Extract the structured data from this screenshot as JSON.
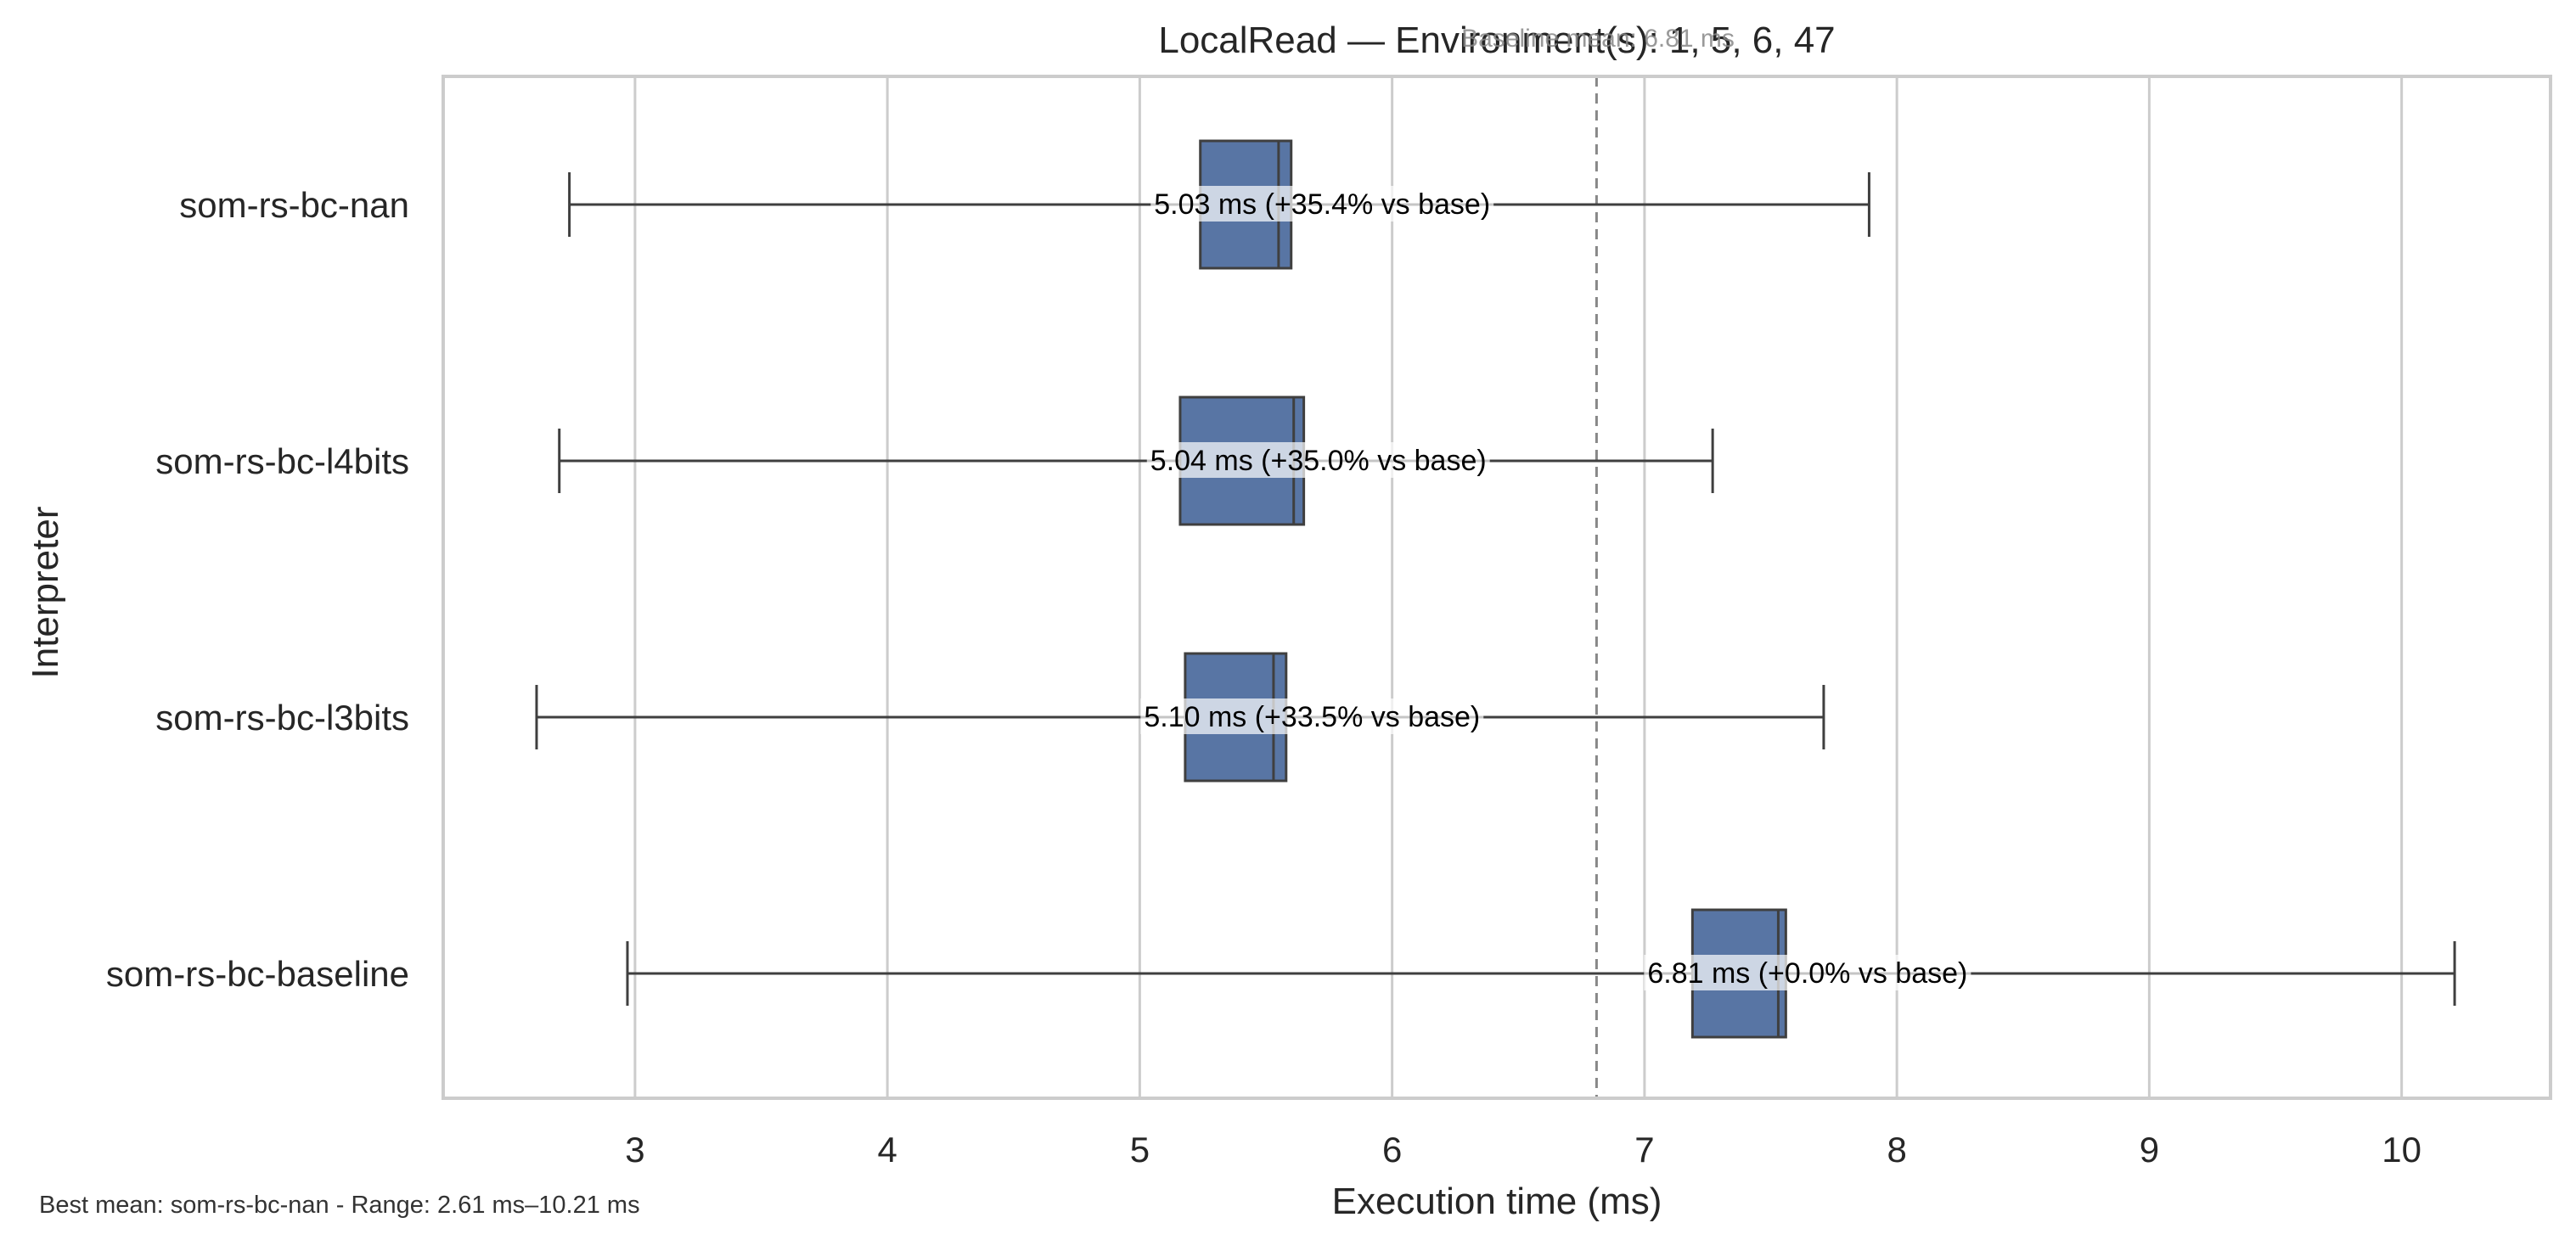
{
  "chart_data": {
    "type": "box",
    "orientation": "horizontal",
    "title": "LocalRead — Environment(s): 1, 5, 6, 47",
    "baseline_label": "Baseline mean: 6.81 ms",
    "xlabel": "Execution time (ms)",
    "ylabel": "Interpreter",
    "xlim": [
      2.24,
      10.59
    ],
    "xticks": [
      3,
      4,
      5,
      6,
      7,
      8,
      9,
      10
    ],
    "grid": true,
    "baseline_value": 6.81,
    "box_color": "#5875a4",
    "baseline_line_color": "#888888",
    "categories": [
      "som-rs-bc-nan",
      "som-rs-bc-l4bits",
      "som-rs-bc-l3bits",
      "som-rs-bc-baseline"
    ],
    "boxes": [
      {
        "name": "som-rs-bc-nan",
        "whisker_low": 2.74,
        "q1": 5.24,
        "median": 5.55,
        "q3": 5.6,
        "whisker_high": 7.89,
        "annotation": "5.03 ms  (+35.4% vs base)"
      },
      {
        "name": "som-rs-bc-l4bits",
        "whisker_low": 2.7,
        "q1": 5.16,
        "median": 5.61,
        "q3": 5.65,
        "whisker_high": 7.27,
        "annotation": "5.04 ms  (+35.0% vs base)"
      },
      {
        "name": "som-rs-bc-l3bits",
        "whisker_low": 2.61,
        "q1": 5.18,
        "median": 5.53,
        "q3": 5.58,
        "whisker_high": 7.71,
        "annotation": "5.10 ms  (+33.5% vs base)"
      },
      {
        "name": "som-rs-bc-baseline",
        "whisker_low": 2.97,
        "q1": 7.19,
        "median": 7.53,
        "q3": 7.56,
        "whisker_high": 10.21,
        "annotation": "6.81 ms  (+0.0% vs base)"
      }
    ]
  },
  "footnote": "Best mean: som-rs-bc-nan - Range: 2.61 ms–10.21 ms"
}
